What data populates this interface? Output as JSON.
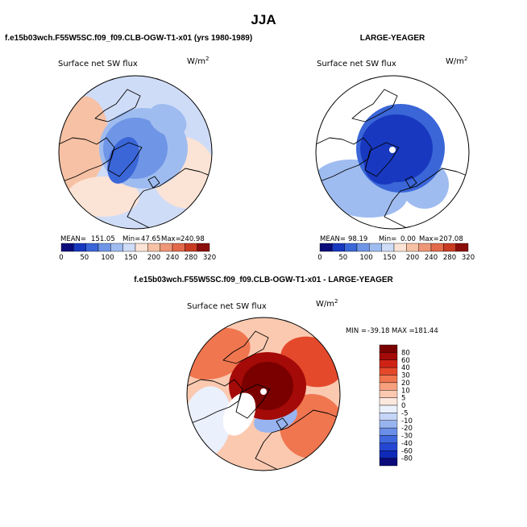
{
  "figure": {
    "title": "JJA",
    "panel_top_left_title": "f.e15b03wch.F55W5SC.f09_f09.CLB-OGW-T1-x01 (yrs 1980-1989)",
    "panel_top_right_title": "LARGE-YEAGER",
    "panel_bottom_title": "f.e15b03wch.F55W5SC.f09_f09.CLB-OGW-T1-x01 - LARGE-YEAGER"
  },
  "colors": {
    "abs_scale": [
      "#0a0a7a",
      "#1838c0",
      "#3a66d8",
      "#6f95e6",
      "#9fbcf0",
      "#cfdcf7",
      "#fbe3d5",
      "#f6c1a4",
      "#ee9677",
      "#e26a4a",
      "#c93c22",
      "#8a0e0a"
    ],
    "diff_scale": [
      "#0a0a7a",
      "#0f2ab8",
      "#2548d2",
      "#3f68df",
      "#6b8fe8",
      "#98b4f0",
      "#c5d5f7",
      "#eaf0fc",
      "#fde8dd",
      "#fbc9b0",
      "#f6a07e",
      "#f07650",
      "#e5492b",
      "#cf2415",
      "#a40a07",
      "#7a0000"
    ]
  },
  "chart_data": [
    {
      "type": "heatmap",
      "title": "f.e15b03wch.F55W5SC.f09_f09.CLB-OGW-T1-x01 (yrs 1980-1989)",
      "subtitle": "Surface net SW flux",
      "units": "W/m",
      "units_exp": "2",
      "stats": {
        "mean_label": "MEAN=",
        "mean": "151.05",
        "min_label": "Min=",
        "min": "47.65",
        "max_label": "Max=",
        "max": "240.98"
      },
      "colorbar_ticks": [
        "0",
        "50",
        "100",
        "150",
        "200",
        "240",
        "280",
        "320"
      ],
      "colorbar_levels": [
        0,
        25,
        50,
        75,
        100,
        125,
        150,
        175,
        200,
        220,
        240,
        260,
        280,
        300,
        320
      ],
      "field": "model_abs"
    },
    {
      "type": "heatmap",
      "title": "LARGE-YEAGER",
      "subtitle": "Surface net SW flux",
      "units": "W/m",
      "units_exp": "2",
      "stats": {
        "mean_label": "MEAN=",
        "mean": "98.19",
        "min_label": "Min=",
        "min": "0.00",
        "max_label": "Max=",
        "max": "207.08"
      },
      "colorbar_ticks": [
        "0",
        "50",
        "100",
        "150",
        "200",
        "240",
        "280",
        "320"
      ],
      "colorbar_levels": [
        0,
        25,
        50,
        75,
        100,
        125,
        150,
        175,
        200,
        220,
        240,
        260,
        280,
        300,
        320
      ],
      "field": "obs_abs"
    },
    {
      "type": "heatmap",
      "title": "f.e15b03wch.F55W5SC.f09_f09.CLB-OGW-T1-x01 - LARGE-YEAGER",
      "subtitle": "Surface net SW flux",
      "units": "W/m",
      "units_exp": "2",
      "stats": {
        "min_label": "MIN =",
        "min": "-39.18",
        "max_label": "MAX =",
        "max": "181.44"
      },
      "colorbar_ticks": [
        "80",
        "60",
        "40",
        "30",
        "20",
        "10",
        "5",
        "0",
        "-5",
        "-10",
        "-20",
        "-30",
        "-40",
        "-60",
        "-80"
      ],
      "colorbar_levels": [
        -80,
        -60,
        -40,
        -30,
        -20,
        -10,
        -5,
        0,
        5,
        10,
        20,
        30,
        40,
        60,
        80
      ],
      "field": "diff"
    }
  ]
}
